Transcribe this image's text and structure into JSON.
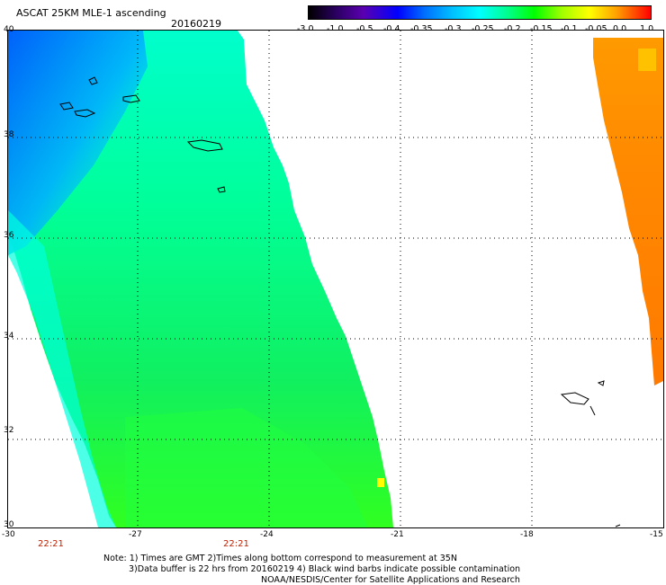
{
  "header": {
    "title": "ASCAT 25KM MLE-1 ascending",
    "date": "20160219"
  },
  "colorbar": {
    "ticks": [
      "-3.0",
      "-1.0",
      "-0.5",
      "-0.4",
      "-0.35",
      "-0.3",
      "-0.25",
      "-0.2",
      "-0.15",
      "-0.1",
      "-0.05",
      "0.0",
      "1.0"
    ],
    "colors": [
      "#000000",
      "#5a00b0",
      "#0000ff",
      "#00c0ff",
      "#00ffff",
      "#00ff00",
      "#ffff00",
      "#ffa000",
      "#ff0000"
    ]
  },
  "axes": {
    "lat_labels": [
      "40",
      "38",
      "36",
      "34",
      "32",
      "30"
    ],
    "lon_labels": [
      "-30",
      "-27",
      "-24",
      "-21",
      "-18",
      "-15"
    ]
  },
  "times": [
    "22:21",
    "22:21"
  ],
  "notes": [
    "Note: 1) Times are GMT 2)Times along bottom correspond to measurement at 35N",
    "3)Data buffer is 22 hrs from 20160219 4) Black wind barbs indicate possible contamination",
    "NOAA/NESDIS/Center for Satellite Applications and Research"
  ],
  "map": {
    "swath_colors": {
      "primary": "#00ff88",
      "blue_region": "#0066ff",
      "cyan": "#00ffff",
      "orange": "#ff8800"
    }
  }
}
